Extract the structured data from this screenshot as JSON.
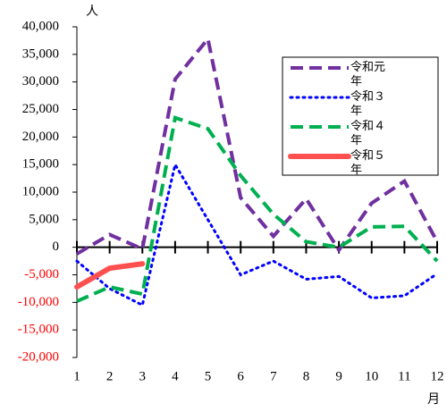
{
  "chart_data": {
    "type": "line",
    "y_unit": "人",
    "x_unit": "月",
    "x": [
      1,
      2,
      3,
      4,
      5,
      6,
      7,
      8,
      9,
      10,
      11,
      12
    ],
    "xlim": [
      1,
      12
    ],
    "series": [
      {
        "name": "令和元年",
        "color": "#7030a0",
        "style": "dashed",
        "values": [
          -1200,
          2300,
          -300,
          30500,
          37800,
          9000,
          2000,
          8800,
          -500,
          8000,
          12000,
          1000
        ]
      },
      {
        "name": "令和３年",
        "color": "#0000ff",
        "style": "dotted",
        "values": [
          -2500,
          -7500,
          -10500,
          15000,
          5000,
          -5000,
          -2500,
          -5800,
          -5300,
          -9200,
          -8800,
          -4800
        ]
      },
      {
        "name": "令和４年",
        "color": "#00b050",
        "style": "dashed",
        "values": [
          -9800,
          -7200,
          -8500,
          23500,
          21500,
          13000,
          6000,
          1000,
          0,
          3700,
          3800,
          -2500
        ]
      },
      {
        "name": "令和５年",
        "color": "#ff5050",
        "style": "solid",
        "values": [
          -7200,
          -3800,
          -3000,
          null,
          null,
          null,
          null,
          null,
          null,
          null,
          null,
          null
        ]
      }
    ],
    "ylim": [
      -20000,
      40000
    ],
    "yticks": [
      {
        "value": -20000,
        "label": "-20,000"
      },
      {
        "value": -15000,
        "label": "-15,000"
      },
      {
        "value": -10000,
        "label": "-10,000"
      },
      {
        "value": -5000,
        "label": "-5,000"
      },
      0,
      {
        "value": 5000,
        "label": "5,000"
      },
      {
        "value": 10000,
        "label": "10,000"
      },
      {
        "value": 15000,
        "label": "15,000"
      },
      {
        "value": 20000,
        "label": "20,000"
      },
      {
        "value": 25000,
        "label": "25,000"
      },
      {
        "value": 30000,
        "label": "30,000"
      },
      {
        "value": 35000,
        "label": "35,000"
      },
      {
        "value": 40000,
        "label": "40,000"
      }
    ],
    "negative_tick_color": "#ff0000",
    "grid": false,
    "legend": "upper right"
  }
}
